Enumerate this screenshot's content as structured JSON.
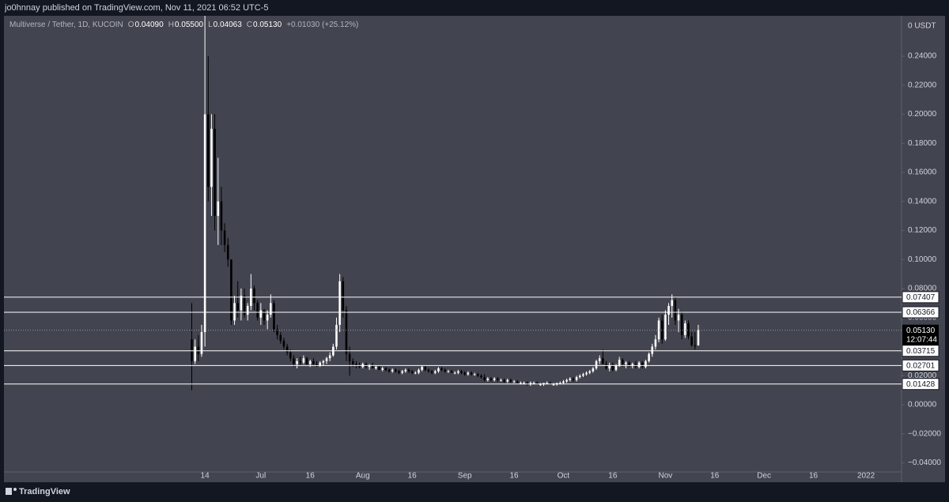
{
  "header": {
    "text": "jo0hnnay published on TradingView.com, Nov 11, 2021 06:52 UTC-5"
  },
  "footer": {
    "brand": "TradingView"
  },
  "chart_data": {
    "type": "candlestick",
    "legend": [
      "Multiverse / Tether, 1D, KUCOIN",
      "O",
      "0.04090",
      "H",
      "0.05500",
      "L",
      "0.04063",
      "C",
      "0.05130",
      "+0.01030 (+25.12%)"
    ],
    "axis_unit_label": "0 USDT",
    "up_color": "#ffffff",
    "down_color": "#000000",
    "xlim": [
      -48.1,
      224.8
    ],
    "xticks": [
      {
        "value": 13,
        "label": "14"
      },
      {
        "value": 30,
        "label": "Jul"
      },
      {
        "value": 45,
        "label": "16"
      },
      {
        "value": 61,
        "label": "Aug"
      },
      {
        "value": 76,
        "label": "16"
      },
      {
        "value": 92,
        "label": "Sep"
      },
      {
        "value": 107,
        "label": "16"
      },
      {
        "value": 122,
        "label": "Oct"
      },
      {
        "value": 137,
        "label": "16"
      },
      {
        "value": 153,
        "label": "Nov"
      },
      {
        "value": 168,
        "label": "16"
      },
      {
        "value": 183,
        "label": "Dec"
      },
      {
        "value": 198,
        "label": "16"
      },
      {
        "value": 214,
        "label": "2022"
      }
    ],
    "ylim": [
      -0.0463,
      0.2678
    ],
    "yticks": [
      {
        "value": -0.04,
        "label": "−0.04000"
      },
      {
        "value": -0.02,
        "label": "−0.02000"
      },
      {
        "value": 0,
        "label": "0.00000"
      },
      {
        "value": 0.02,
        "label": "0.02000"
      },
      {
        "value": 0.04,
        "label": "0.04000"
      },
      {
        "value": 0.06,
        "label": "0.06000"
      },
      {
        "value": 0.08,
        "label": "0.08000"
      },
      {
        "value": 0.1,
        "label": "0.10000"
      },
      {
        "value": 0.12,
        "label": "0.12000"
      },
      {
        "value": 0.14,
        "label": "0.14000"
      },
      {
        "value": 0.16,
        "label": "0.16000"
      },
      {
        "value": 0.18,
        "label": "0.18000"
      },
      {
        "value": 0.2,
        "label": "0.20000"
      },
      {
        "value": 0.22,
        "label": "0.22000"
      },
      {
        "value": 0.24,
        "label": "0.24000"
      }
    ],
    "hlines": [
      {
        "value": 0.07407,
        "label": "0.07407"
      },
      {
        "value": 0.06366,
        "label": "0.06366"
      },
      {
        "value": 0.03715,
        "label": "0.03715"
      },
      {
        "value": 0.02701,
        "label": "0.02701"
      },
      {
        "value": 0.01428,
        "label": "0.01428"
      }
    ],
    "last_price": {
      "value": 0.0513,
      "label": "0.05130"
    },
    "countdown": "12:07:44",
    "x": [
      9,
      10,
      11,
      12,
      13,
      14,
      15,
      16,
      17,
      18,
      19,
      20,
      21,
      22,
      23,
      24,
      25,
      26,
      27,
      28,
      29,
      30,
      31,
      32,
      33,
      34,
      35,
      36,
      37,
      38,
      39,
      40,
      41,
      42,
      43,
      44,
      45,
      46,
      47,
      48,
      49,
      50,
      51,
      52,
      53,
      54,
      55,
      56,
      57,
      58,
      59,
      60,
      61,
      62,
      63,
      64,
      65,
      66,
      67,
      68,
      69,
      70,
      71,
      72,
      73,
      74,
      75,
      76,
      77,
      78,
      79,
      80,
      81,
      82,
      83,
      84,
      85,
      86,
      87,
      88,
      89,
      90,
      91,
      92,
      93,
      94,
      95,
      96,
      97,
      98,
      99,
      100,
      101,
      102,
      103,
      104,
      105,
      106,
      107,
      108,
      109,
      110,
      111,
      112,
      113,
      114,
      115,
      116,
      117,
      118,
      119,
      120,
      121,
      122,
      123,
      124,
      125,
      126,
      127,
      128,
      129,
      130,
      131,
      132,
      133,
      134,
      135,
      136,
      137,
      138,
      139,
      140,
      141,
      142,
      143,
      144,
      145,
      146,
      147,
      148,
      149,
      150,
      151,
      152,
      153,
      154,
      155,
      156,
      157,
      158,
      159,
      160,
      161,
      162,
      163
    ],
    "ohlc": [
      [
        0.045,
        0.07,
        0.01,
        0.03
      ],
      [
        0.03,
        0.045,
        0.028,
        0.04
      ],
      [
        0.04,
        0.048,
        0.03,
        0.035
      ],
      [
        0.035,
        0.055,
        0.033,
        0.05
      ],
      [
        0.05,
        0.28,
        0.04,
        0.2
      ],
      [
        0.2,
        0.24,
        0.14,
        0.15
      ],
      [
        0.15,
        0.2,
        0.13,
        0.19
      ],
      [
        0.19,
        0.2,
        0.12,
        0.13
      ],
      [
        0.13,
        0.17,
        0.11,
        0.14
      ],
      [
        0.14,
        0.15,
        0.11,
        0.12
      ],
      [
        0.12,
        0.125,
        0.105,
        0.11
      ],
      [
        0.11,
        0.115,
        0.095,
        0.1
      ],
      [
        0.1,
        0.1,
        0.055,
        0.058
      ],
      [
        0.058,
        0.075,
        0.055,
        0.07
      ],
      [
        0.07,
        0.085,
        0.06,
        0.065
      ],
      [
        0.065,
        0.08,
        0.058,
        0.075
      ],
      [
        0.075,
        0.08,
        0.06,
        0.062
      ],
      [
        0.062,
        0.07,
        0.058,
        0.068
      ],
      [
        0.068,
        0.09,
        0.065,
        0.08
      ],
      [
        0.08,
        0.082,
        0.065,
        0.07
      ],
      [
        0.07,
        0.072,
        0.058,
        0.06
      ],
      [
        0.06,
        0.07,
        0.055,
        0.065
      ],
      [
        0.065,
        0.066,
        0.055,
        0.058
      ],
      [
        0.058,
        0.065,
        0.052,
        0.062
      ],
      [
        0.062,
        0.076,
        0.06,
        0.07
      ],
      [
        0.07,
        0.072,
        0.05,
        0.052
      ],
      [
        0.052,
        0.055,
        0.045,
        0.048
      ],
      [
        0.048,
        0.05,
        0.042,
        0.044
      ],
      [
        0.044,
        0.046,
        0.038,
        0.04
      ],
      [
        0.04,
        0.042,
        0.034,
        0.036
      ],
      [
        0.036,
        0.038,
        0.03,
        0.032
      ],
      [
        0.032,
        0.034,
        0.026,
        0.028
      ],
      [
        0.028,
        0.032,
        0.025,
        0.03
      ],
      [
        0.03,
        0.033,
        0.027,
        0.029
      ],
      [
        0.029,
        0.034,
        0.028,
        0.032
      ],
      [
        0.032,
        0.033,
        0.027,
        0.028
      ],
      [
        0.028,
        0.031,
        0.026,
        0.03
      ],
      [
        0.03,
        0.032,
        0.027,
        0.028
      ],
      [
        0.028,
        0.03,
        0.026,
        0.027
      ],
      [
        0.027,
        0.03,
        0.026,
        0.029
      ],
      [
        0.029,
        0.031,
        0.027,
        0.03
      ],
      [
        0.03,
        0.033,
        0.028,
        0.032
      ],
      [
        0.032,
        0.036,
        0.03,
        0.034
      ],
      [
        0.034,
        0.042,
        0.033,
        0.04
      ],
      [
        0.04,
        0.06,
        0.038,
        0.055
      ],
      [
        0.055,
        0.09,
        0.05,
        0.085
      ],
      [
        0.085,
        0.088,
        0.06,
        0.065
      ],
      [
        0.065,
        0.068,
        0.03,
        0.035
      ],
      [
        0.035,
        0.04,
        0.02,
        0.03
      ],
      [
        0.03,
        0.032,
        0.026,
        0.028
      ],
      [
        0.028,
        0.03,
        0.025,
        0.027
      ],
      [
        0.027,
        0.029,
        0.025,
        0.026
      ],
      [
        0.026,
        0.029,
        0.025,
        0.028
      ],
      [
        0.028,
        0.029,
        0.025,
        0.026
      ],
      [
        0.026,
        0.028,
        0.024,
        0.027
      ],
      [
        0.027,
        0.029,
        0.025,
        0.025
      ],
      [
        0.025,
        0.027,
        0.024,
        0.026
      ],
      [
        0.026,
        0.027,
        0.024,
        0.024
      ],
      [
        0.024,
        0.026,
        0.023,
        0.025
      ],
      [
        0.025,
        0.026,
        0.023,
        0.024
      ],
      [
        0.024,
        0.025,
        0.022,
        0.023
      ],
      [
        0.023,
        0.025,
        0.022,
        0.024
      ],
      [
        0.024,
        0.025,
        0.022,
        0.023
      ],
      [
        0.023,
        0.024,
        0.021,
        0.022
      ],
      [
        0.022,
        0.024,
        0.021,
        0.023
      ],
      [
        0.023,
        0.025,
        0.022,
        0.024
      ],
      [
        0.024,
        0.025,
        0.022,
        0.023
      ],
      [
        0.023,
        0.024,
        0.021,
        0.022
      ],
      [
        0.022,
        0.023,
        0.021,
        0.022
      ],
      [
        0.022,
        0.025,
        0.021,
        0.024
      ],
      [
        0.024,
        0.027,
        0.023,
        0.026
      ],
      [
        0.026,
        0.027,
        0.023,
        0.024
      ],
      [
        0.024,
        0.025,
        0.022,
        0.023
      ],
      [
        0.023,
        0.024,
        0.021,
        0.022
      ],
      [
        0.022,
        0.024,
        0.021,
        0.023
      ],
      [
        0.023,
        0.026,
        0.022,
        0.025
      ],
      [
        0.025,
        0.026,
        0.023,
        0.024
      ],
      [
        0.024,
        0.025,
        0.022,
        0.023
      ],
      [
        0.023,
        0.024,
        0.022,
        0.023
      ],
      [
        0.023,
        0.024,
        0.022,
        0.022
      ],
      [
        0.022,
        0.023,
        0.021,
        0.022
      ],
      [
        0.022,
        0.024,
        0.021,
        0.023
      ],
      [
        0.023,
        0.024,
        0.021,
        0.022
      ],
      [
        0.022,
        0.023,
        0.02,
        0.021
      ],
      [
        0.021,
        0.023,
        0.02,
        0.022
      ],
      [
        0.022,
        0.023,
        0.02,
        0.021
      ],
      [
        0.021,
        0.022,
        0.02,
        0.021
      ],
      [
        0.021,
        0.022,
        0.019,
        0.02
      ],
      [
        0.02,
        0.021,
        0.018,
        0.019
      ],
      [
        0.019,
        0.021,
        0.016,
        0.017
      ],
      [
        0.017,
        0.019,
        0.016,
        0.018
      ],
      [
        0.018,
        0.019,
        0.016,
        0.017
      ],
      [
        0.017,
        0.019,
        0.016,
        0.018
      ],
      [
        0.018,
        0.019,
        0.016,
        0.017
      ],
      [
        0.017,
        0.018,
        0.016,
        0.017
      ],
      [
        0.017,
        0.018,
        0.015,
        0.016
      ],
      [
        0.016,
        0.018,
        0.015,
        0.017
      ],
      [
        0.017,
        0.018,
        0.015,
        0.016
      ],
      [
        0.016,
        0.017,
        0.015,
        0.016
      ],
      [
        0.016,
        0.017,
        0.015,
        0.015
      ],
      [
        0.015,
        0.016,
        0.014,
        0.015
      ],
      [
        0.015,
        0.016,
        0.014,
        0.015
      ],
      [
        0.015,
        0.016,
        0.013,
        0.014
      ],
      [
        0.014,
        0.016,
        0.013,
        0.015
      ],
      [
        0.015,
        0.016,
        0.014,
        0.015
      ],
      [
        0.015,
        0.016,
        0.014,
        0.014
      ],
      [
        0.014,
        0.015,
        0.013,
        0.014
      ],
      [
        0.014,
        0.015,
        0.013,
        0.015
      ],
      [
        0.015,
        0.016,
        0.014,
        0.015
      ],
      [
        0.015,
        0.016,
        0.014,
        0.014
      ],
      [
        0.014,
        0.015,
        0.013,
        0.014
      ],
      [
        0.014,
        0.015,
        0.013,
        0.015
      ],
      [
        0.015,
        0.016,
        0.014,
        0.015
      ],
      [
        0.015,
        0.017,
        0.014,
        0.016
      ],
      [
        0.016,
        0.018,
        0.015,
        0.017
      ],
      [
        0.017,
        0.019,
        0.016,
        0.018
      ],
      [
        0.018,
        0.019,
        0.016,
        0.017
      ],
      [
        0.017,
        0.02,
        0.016,
        0.019
      ],
      [
        0.019,
        0.021,
        0.018,
        0.02
      ],
      [
        0.02,
        0.022,
        0.019,
        0.021
      ],
      [
        0.021,
        0.023,
        0.02,
        0.022
      ],
      [
        0.022,
        0.024,
        0.021,
        0.023
      ],
      [
        0.023,
        0.026,
        0.022,
        0.025
      ],
      [
        0.025,
        0.031,
        0.024,
        0.03
      ],
      [
        0.03,
        0.034,
        0.028,
        0.032
      ],
      [
        0.032,
        0.038,
        0.03,
        0.028
      ],
      [
        0.028,
        0.03,
        0.024,
        0.025
      ],
      [
        0.025,
        0.029,
        0.023,
        0.027
      ],
      [
        0.027,
        0.029,
        0.023,
        0.024
      ],
      [
        0.024,
        0.028,
        0.023,
        0.027
      ],
      [
        0.027,
        0.033,
        0.026,
        0.031
      ],
      [
        0.031,
        0.032,
        0.026,
        0.028
      ],
      [
        0.028,
        0.03,
        0.025,
        0.029
      ],
      [
        0.029,
        0.03,
        0.026,
        0.027
      ],
      [
        0.027,
        0.029,
        0.025,
        0.028
      ],
      [
        0.028,
        0.03,
        0.025,
        0.026
      ],
      [
        0.026,
        0.03,
        0.025,
        0.029
      ],
      [
        0.029,
        0.03,
        0.025,
        0.026
      ],
      [
        0.026,
        0.031,
        0.025,
        0.03
      ],
      [
        0.03,
        0.036,
        0.029,
        0.035
      ],
      [
        0.035,
        0.042,
        0.033,
        0.04
      ],
      [
        0.04,
        0.048,
        0.038,
        0.045
      ],
      [
        0.045,
        0.06,
        0.043,
        0.058
      ],
      [
        0.058,
        0.062,
        0.042,
        0.045
      ],
      [
        0.045,
        0.065,
        0.044,
        0.062
      ],
      [
        0.062,
        0.07,
        0.055,
        0.068
      ],
      [
        0.068,
        0.076,
        0.06,
        0.072
      ],
      [
        0.072,
        0.074,
        0.055,
        0.058
      ],
      [
        0.058,
        0.066,
        0.05,
        0.062
      ],
      [
        0.062,
        0.064,
        0.045,
        0.048
      ],
      [
        0.048,
        0.058,
        0.046,
        0.056
      ],
      [
        0.056,
        0.058,
        0.045,
        0.047
      ],
      [
        0.047,
        0.05,
        0.04,
        0.041
      ],
      [
        0.041,
        0.05,
        0.038,
        0.0409
      ],
      [
        0.0409,
        0.055,
        0.04063,
        0.0513
      ]
    ]
  }
}
